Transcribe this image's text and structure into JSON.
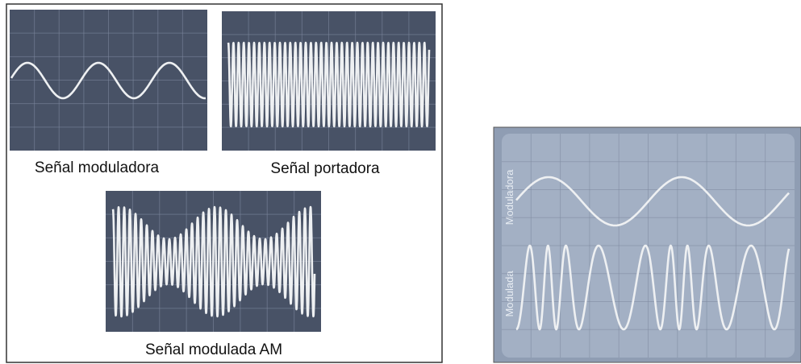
{
  "figure_left": {
    "panels": [
      {
        "label": "Señal moduladora"
      },
      {
        "label": "Señal portadora"
      },
      {
        "label": "Señal modulada AM"
      }
    ]
  },
  "figure_right": {
    "labels": [
      "Moduladora",
      "Modulada"
    ]
  }
}
